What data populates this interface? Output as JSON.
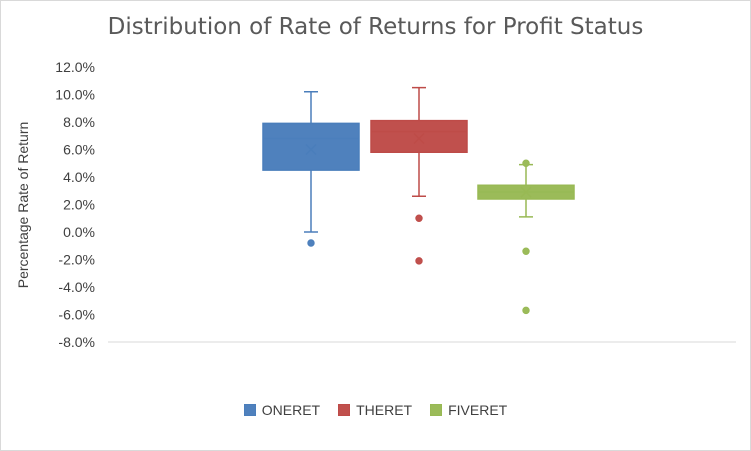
{
  "chart_data": {
    "type": "box",
    "title": "Distribution of Rate of Returns for Profit Status",
    "ylabel": "Percentage Rate of Return",
    "xlabel": "",
    "ylim": [
      -8.0,
      12.0
    ],
    "yticks": [
      "12.0%",
      "10.0%",
      "8.0%",
      "6.0%",
      "4.0%",
      "2.0%",
      "0.0%",
      "-2.0%",
      "-4.0%",
      "-6.0%",
      "-8.0%"
    ],
    "ytick_values": [
      12,
      10,
      8,
      6,
      4,
      2,
      0,
      -2,
      -4,
      -6,
      -8
    ],
    "grid": false,
    "legend_position": "bottom",
    "series": [
      {
        "name": "ONERET",
        "color": "#4a7ebb",
        "fill": "#4f81bd",
        "min": 0.0,
        "q1": 4.5,
        "median": 6.8,
        "q3": 7.9,
        "max": 10.2,
        "mean": 6.0,
        "outliers": [
          -0.8
        ]
      },
      {
        "name": "THERET",
        "color": "#be4b48",
        "fill": "#c0504d",
        "min": 2.6,
        "q1": 5.8,
        "median": 7.3,
        "q3": 8.1,
        "max": 10.5,
        "mean": 6.8,
        "outliers": [
          1.0,
          -2.1
        ]
      },
      {
        "name": "FIVERET",
        "color": "#98b954",
        "fill": "#9bbb59",
        "min": 1.1,
        "q1": 2.4,
        "median": 2.9,
        "q3": 3.4,
        "max": 4.9,
        "mean": 2.9,
        "outliers": [
          5.0,
          -1.4,
          -5.7
        ]
      }
    ]
  }
}
